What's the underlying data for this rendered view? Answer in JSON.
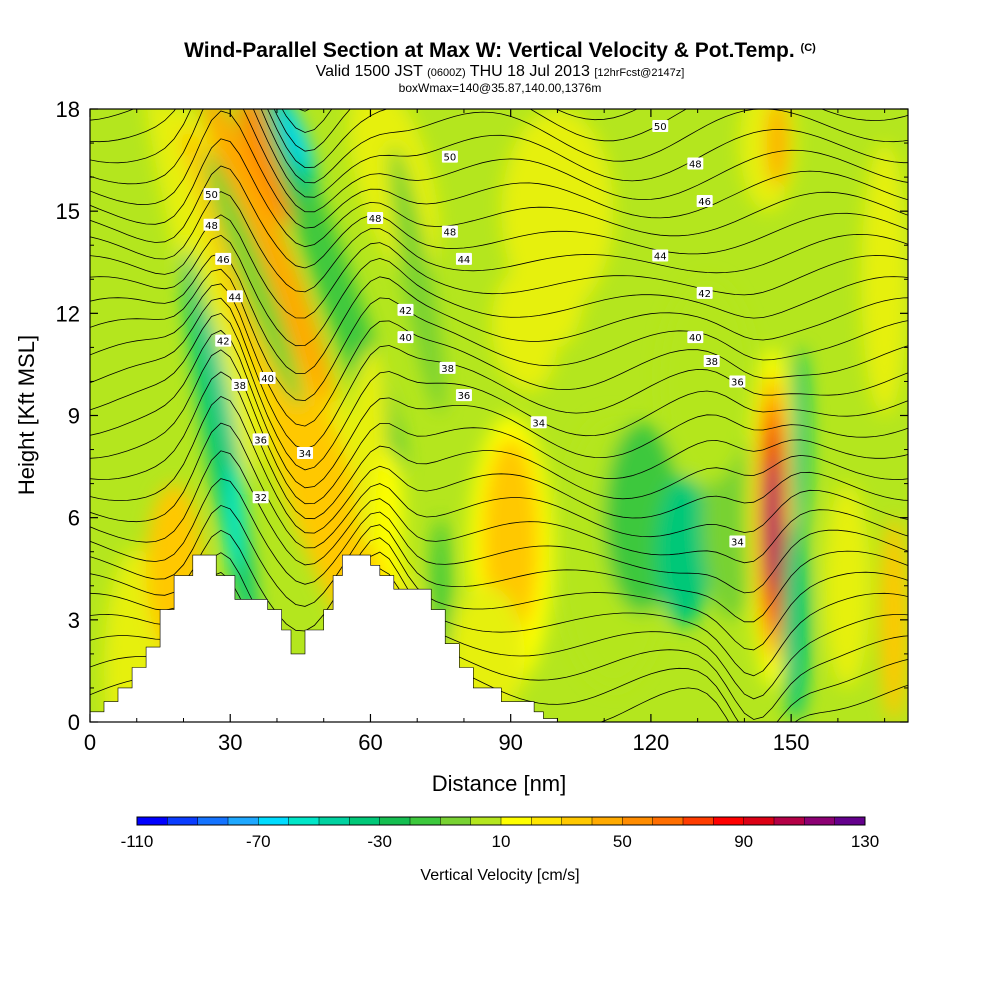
{
  "header": {
    "title": "Wind-Parallel Section at Max W: Vertical Velocity & Pot.Temp.",
    "title_mark": "(C)",
    "subtitle_a": "Valid 1500 JST",
    "subtitle_b": "(0600Z)",
    "subtitle_c": "THU 18 Jul 2013",
    "subtitle_d": "[12hrFcst@2147z]",
    "subtitle_line3": "boxWmax=140@35.87,140.00,1376m"
  },
  "chart_data": {
    "type": "heatmap",
    "xlabel": "Distance [nm]",
    "ylabel": "Height [Kft MSL]",
    "xlim": [
      0,
      175
    ],
    "ylim": [
      0,
      18
    ],
    "x_ticks": [
      "0",
      "30",
      "60",
      "90",
      "120",
      "150"
    ],
    "y_ticks": [
      "0",
      "3",
      "6",
      "9",
      "12",
      "15",
      "18"
    ],
    "colorbar": {
      "title": "Vertical Velocity [cm/s]",
      "min": -110,
      "max": 130,
      "step": 10,
      "tick_labels": [
        "-110",
        "-70",
        "-30",
        "10",
        "50",
        "90",
        "130"
      ],
      "colors": [
        "#0000ff",
        "#0a3cff",
        "#1473ff",
        "#1ea8ff",
        "#00dcff",
        "#00e6c8",
        "#00d2a0",
        "#00c878",
        "#14be50",
        "#3cc83c",
        "#78d232",
        "#b4e61e",
        "#e6f00a",
        "#ffff00",
        "#ffe600",
        "#ffc800",
        "#ffaa00",
        "#ff8c00",
        "#ff6e00",
        "#ff3c00",
        "#ff0000",
        "#dc0014",
        "#b40046",
        "#8c0073",
        "#64008c"
      ]
    },
    "contour_labels": [
      {
        "value": "50",
        "x": 26,
        "y": 15.5
      },
      {
        "value": "48",
        "x": 26,
        "y": 14.6
      },
      {
        "value": "46",
        "x": 28.5,
        "y": 13.6
      },
      {
        "value": "44",
        "x": 31,
        "y": 12.5
      },
      {
        "value": "42",
        "x": 28.5,
        "y": 11.2
      },
      {
        "value": "40",
        "x": 38,
        "y": 10.1
      },
      {
        "value": "38",
        "x": 32,
        "y": 9.9
      },
      {
        "value": "36",
        "x": 36.5,
        "y": 8.3
      },
      {
        "value": "34",
        "x": 46,
        "y": 7.9
      },
      {
        "value": "32",
        "x": 36.5,
        "y": 6.6
      },
      {
        "value": "50",
        "x": 77,
        "y": 16.6
      },
      {
        "value": "48",
        "x": 61,
        "y": 14.8
      },
      {
        "value": "48",
        "x": 77,
        "y": 14.4
      },
      {
        "value": "44",
        "x": 80,
        "y": 13.6
      },
      {
        "value": "42",
        "x": 67.5,
        "y": 12.1
      },
      {
        "value": "40",
        "x": 67.5,
        "y": 11.3
      },
      {
        "value": "38",
        "x": 76.5,
        "y": 10.4
      },
      {
        "value": "36",
        "x": 80,
        "y": 9.6
      },
      {
        "value": "34",
        "x": 96,
        "y": 8.8
      },
      {
        "value": "50",
        "x": 122,
        "y": 17.5
      },
      {
        "value": "48",
        "x": 129.5,
        "y": 16.4
      },
      {
        "value": "46",
        "x": 131.5,
        "y": 15.3
      },
      {
        "value": "44",
        "x": 122,
        "y": 13.7
      },
      {
        "value": "42",
        "x": 131.5,
        "y": 12.6
      },
      {
        "value": "40",
        "x": 129.5,
        "y": 11.3
      },
      {
        "value": "38",
        "x": 133,
        "y": 10.6
      },
      {
        "value": "36",
        "x": 138.5,
        "y": 10.0
      },
      {
        "value": "34",
        "x": 138.5,
        "y": 5.3
      }
    ],
    "terrain": [
      [
        0,
        0.3
      ],
      [
        3,
        0.6
      ],
      [
        6,
        1.0
      ],
      [
        9,
        1.6
      ],
      [
        12,
        2.2
      ],
      [
        15,
        3.3
      ],
      [
        18,
        4.3
      ],
      [
        22,
        4.9
      ],
      [
        25,
        4.9
      ],
      [
        27,
        4.3
      ],
      [
        29,
        4.3
      ],
      [
        31,
        3.6
      ],
      [
        35,
        3.6
      ],
      [
        38,
        3.3
      ],
      [
        41,
        2.7
      ],
      [
        43,
        2.0
      ],
      [
        46,
        2.7
      ],
      [
        50,
        3.3
      ],
      [
        52,
        4.3
      ],
      [
        54,
        4.9
      ],
      [
        58,
        4.9
      ],
      [
        60,
        4.6
      ],
      [
        62,
        4.3
      ],
      [
        65,
        3.9
      ],
      [
        70,
        3.9
      ],
      [
        73,
        3.3
      ],
      [
        76,
        2.3
      ],
      [
        79,
        1.6
      ],
      [
        82,
        1.0
      ],
      [
        88,
        0.6
      ],
      [
        95,
        0.3
      ],
      [
        97,
        0.1
      ],
      [
        100,
        0.0
      ]
    ]
  }
}
